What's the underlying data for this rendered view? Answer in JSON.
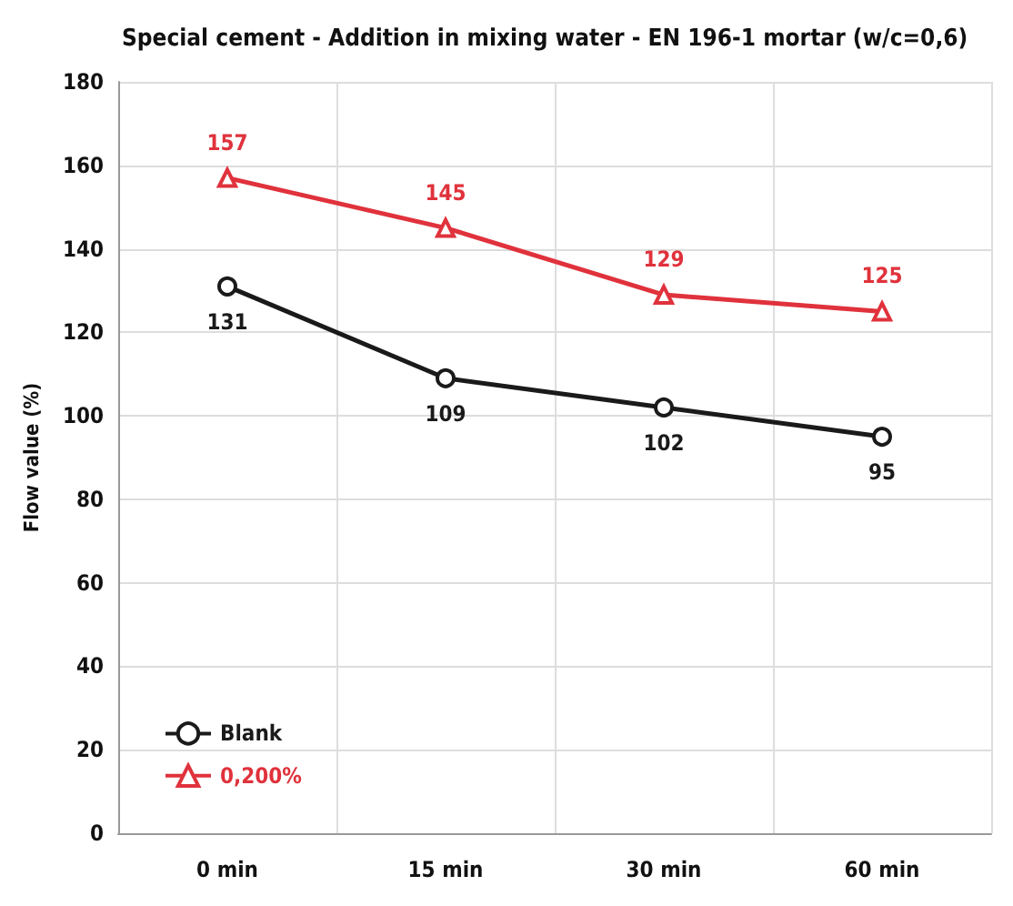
{
  "chart_data": {
    "type": "line",
    "title": "Special cement - Addition in mixing water - EN 196-1 mortar (w/c=0,6)",
    "ylabel": "Flow value (%)",
    "categories": [
      "0 min",
      "15 min",
      "30 min",
      "60 min"
    ],
    "series": [
      {
        "name": "Blank",
        "color": "#1a1a1a",
        "marker": "circle",
        "values": [
          131,
          109,
          102,
          95
        ]
      },
      {
        "name": "0,200%",
        "color": "#e0323c",
        "marker": "triangle",
        "values": [
          157,
          145,
          129,
          125
        ]
      }
    ],
    "ylim": [
      0,
      180
    ],
    "yticks": [
      0,
      20,
      40,
      60,
      80,
      100,
      120,
      140,
      160,
      180
    ],
    "grid": true,
    "legend": "bottom left",
    "data_labels": true
  }
}
